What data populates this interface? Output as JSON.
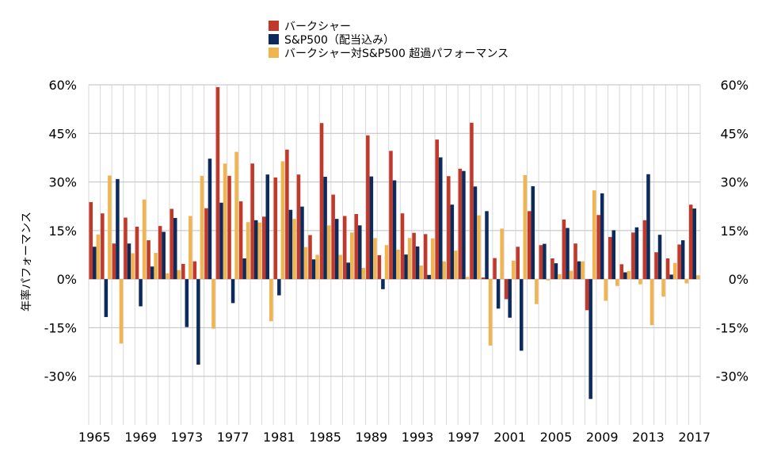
{
  "chart_data": {
    "type": "bar",
    "ylabel": "年率パフォーマンス",
    "ylim": [
      -45,
      60
    ],
    "yticks": [
      -30,
      -15,
      0,
      15,
      30,
      45,
      60
    ],
    "ytick_labels": [
      "-30%",
      "-15%",
      "0%",
      "15%",
      "30%",
      "45%",
      "60%"
    ],
    "xtick_labels": [
      "1965",
      "1969",
      "1973",
      "1977",
      "1981",
      "1985",
      "1989",
      "1993",
      "1997",
      "2001",
      "2005",
      "2009",
      "2013",
      "2017"
    ],
    "categories": [
      "1965",
      "1966",
      "1967",
      "1968",
      "1969",
      "1970",
      "1971",
      "1972",
      "1973",
      "1974",
      "1975",
      "1976",
      "1977",
      "1978",
      "1979",
      "1980",
      "1981",
      "1982",
      "1983",
      "1984",
      "1985",
      "1986",
      "1987",
      "1988",
      "1989",
      "1990",
      "1991",
      "1992",
      "1993",
      "1994",
      "1995",
      "1996",
      "1997",
      "1998",
      "1999",
      "2000",
      "2001",
      "2002",
      "2003",
      "2004",
      "2005",
      "2006",
      "2007",
      "2008",
      "2009",
      "2010",
      "2011",
      "2012",
      "2013",
      "2014",
      "2015",
      "2016",
      "2017"
    ],
    "series": [
      {
        "name": "バークシャー",
        "color": "#c0392b",
        "values": [
          23.8,
          20.3,
          11.0,
          19.0,
          16.2,
          12.0,
          16.4,
          21.7,
          4.7,
          5.5,
          21.9,
          59.3,
          31.9,
          24.0,
          35.7,
          19.3,
          31.4,
          40.0,
          32.3,
          13.6,
          48.2,
          26.1,
          19.5,
          20.1,
          44.4,
          7.4,
          39.6,
          20.3,
          14.3,
          13.9,
          43.1,
          31.8,
          34.1,
          48.3,
          0.5,
          6.5,
          -6.2,
          10.0,
          21.0,
          10.5,
          6.4,
          18.4,
          11.0,
          -9.6,
          19.8,
          13.0,
          4.6,
          14.4,
          18.2,
          8.3,
          6.4,
          10.7,
          23.0
        ]
      },
      {
        "name": "S&P500（配当込み）",
        "color": "#0d2a5c",
        "values": [
          10.0,
          -11.7,
          30.9,
          11.0,
          -8.4,
          3.9,
          14.6,
          18.9,
          -14.8,
          -26.4,
          37.2,
          23.6,
          -7.4,
          6.4,
          18.2,
          32.3,
          -5.0,
          21.4,
          22.4,
          6.1,
          31.6,
          18.6,
          5.1,
          16.6,
          31.7,
          -3.1,
          30.5,
          7.6,
          10.1,
          1.3,
          37.6,
          23.0,
          33.4,
          28.6,
          21.0,
          -9.1,
          -11.9,
          -22.1,
          28.7,
          10.9,
          4.9,
          15.8,
          5.5,
          -37.0,
          26.5,
          15.1,
          2.1,
          16.0,
          32.4,
          13.7,
          1.4,
          12.0,
          21.8
        ]
      },
      {
        "name": "バークシャー対S&P500 超過パフォーマンス",
        "color": "#f0b450",
        "values": [
          13.8,
          32.0,
          -19.9,
          8.0,
          24.6,
          8.1,
          1.8,
          2.8,
          19.5,
          31.9,
          -15.3,
          35.7,
          39.3,
          17.6,
          17.5,
          -13.0,
          36.4,
          18.6,
          9.9,
          7.5,
          16.6,
          7.5,
          14.4,
          3.5,
          12.7,
          10.5,
          9.1,
          12.7,
          4.2,
          12.6,
          5.5,
          8.8,
          0.7,
          19.7,
          -20.5,
          15.6,
          5.7,
          32.1,
          -7.7,
          -0.4,
          1.5,
          2.6,
          5.5,
          27.4,
          -6.7,
          -2.1,
          2.5,
          -1.6,
          -14.2,
          -5.4,
          5.0,
          -1.3,
          1.2
        ]
      }
    ]
  }
}
